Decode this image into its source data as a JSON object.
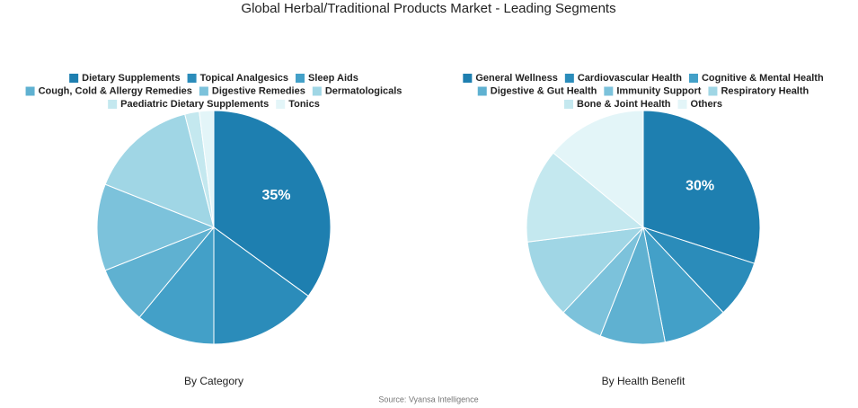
{
  "title": "Global Herbal/Traditional Products Market - Leading Segments",
  "source": "Source: Vyansa Intelligence",
  "chart_data": [
    {
      "type": "pie",
      "title": "By Category",
      "categories": [
        "Dietary Supplements",
        "Topical Analgesics",
        "Sleep Aids",
        "Cough, Cold & Allergy Remedies",
        "Digestive Remedies",
        "Dermatologicals",
        "Paediatric Dietary Supplements",
        "Tonics"
      ],
      "values": [
        35,
        15,
        11,
        8,
        12,
        15,
        2,
        2
      ],
      "value_labels": [
        "35%",
        null,
        null,
        null,
        null,
        null,
        null,
        null
      ],
      "colors": [
        "#1e7fb0",
        "#2b8cba",
        "#43a0c8",
        "#5fb1d1",
        "#7cc2db",
        "#a0d6e5",
        "#c4e8ef",
        "#e3f5f8"
      ]
    },
    {
      "type": "pie",
      "title": "By Health Benefit",
      "categories": [
        "General Wellness",
        "Cardiovascular Health",
        "Cognitive & Mental Health",
        "Digestive & Gut Health",
        "Immunity Support",
        "Respiratory Health",
        "Bone & Joint Health",
        "Others"
      ],
      "values": [
        30,
        8,
        9,
        9,
        6,
        11,
        13,
        14
      ],
      "value_labels": [
        "30%",
        null,
        null,
        null,
        null,
        null,
        null,
        null
      ],
      "colors": [
        "#1e7fb0",
        "#2b8cba",
        "#43a0c8",
        "#5fb1d1",
        "#7cc2db",
        "#a0d6e5",
        "#c4e8ef",
        "#e3f5f8"
      ]
    }
  ]
}
